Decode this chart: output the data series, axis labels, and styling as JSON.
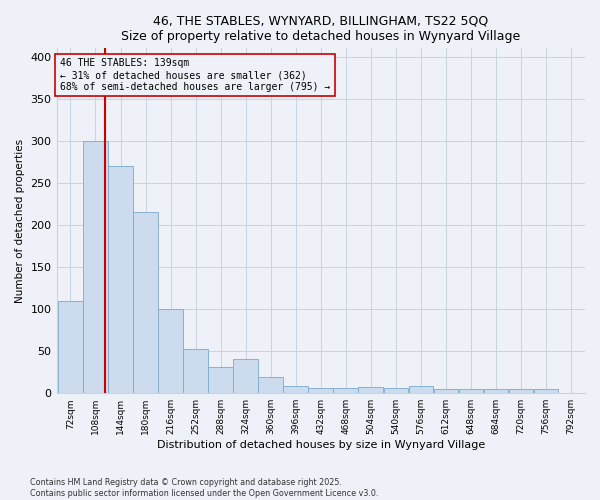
{
  "title_line1": "46, THE STABLES, WYNYARD, BILLINGHAM, TS22 5QQ",
  "title_line2": "Size of property relative to detached houses in Wynyard Village",
  "xlabel": "Distribution of detached houses by size in Wynyard Village",
  "ylabel": "Number of detached properties",
  "footer_line1": "Contains HM Land Registry data © Crown copyright and database right 2025.",
  "footer_line2": "Contains public sector information licensed under the Open Government Licence v3.0.",
  "annotation_line1": "46 THE STABLES: 139sqm",
  "annotation_line2": "← 31% of detached houses are smaller (362)",
  "annotation_line3": "68% of semi-detached houses are larger (795) →",
  "subject_value": 139,
  "bins": [
    72,
    108,
    144,
    180,
    216,
    252,
    288,
    324,
    360,
    396,
    432,
    468,
    504,
    540,
    576,
    612,
    648,
    684,
    720,
    756,
    792
  ],
  "bar_heights": [
    110,
    300,
    270,
    215,
    100,
    52,
    31,
    41,
    19,
    8,
    6,
    6,
    7,
    6,
    8,
    5,
    5,
    5,
    5,
    5
  ],
  "bar_color": "#ccdcee",
  "bar_edge_color": "#7aaacc",
  "subject_line_color": "#cc0000",
  "annotation_box_color": "#cc0000",
  "grid_color": "#c8d4e0",
  "bg_color": "#eef2f8",
  "ylim": [
    0,
    410
  ],
  "yticks": [
    0,
    50,
    100,
    150,
    200,
    250,
    300,
    350,
    400
  ]
}
